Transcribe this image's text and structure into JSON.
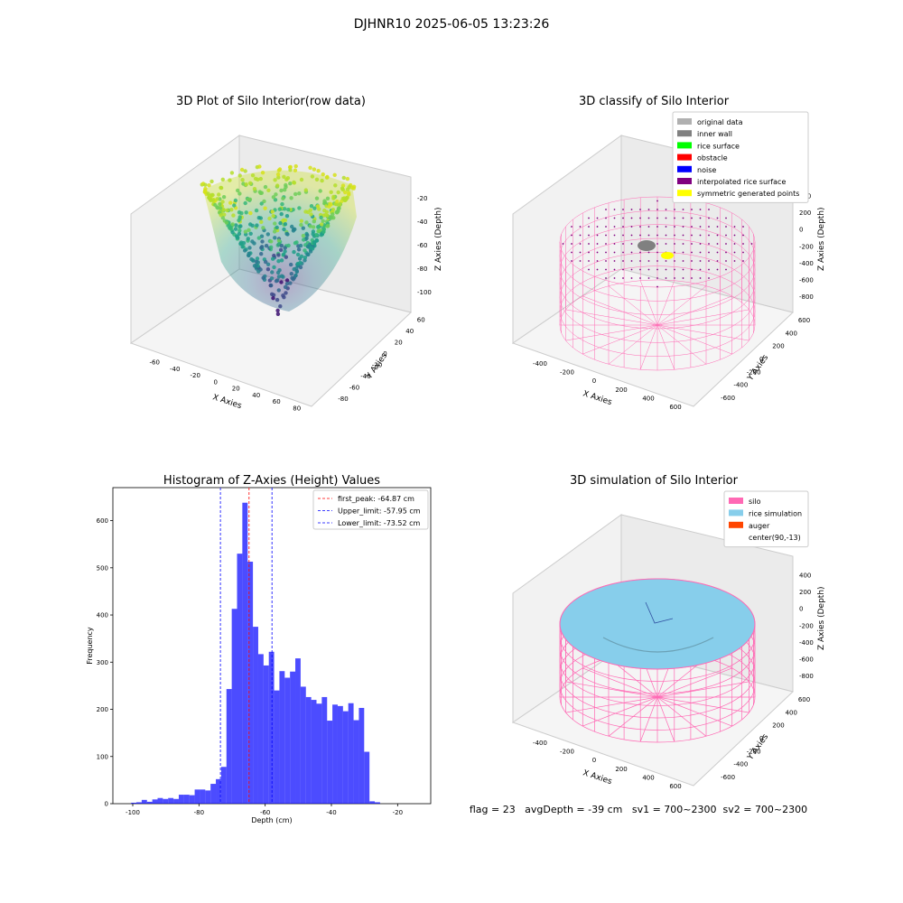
{
  "figure": {
    "suptitle": "DJHNR10 2025-06-05 13:23:26",
    "footer": "flag = 23   avgDepth = -39 cm   sv1 = 700~2300  sv2 = 700~2300"
  },
  "panels": {
    "raw": {
      "title": "3D Plot of Silo Interior(row data)",
      "xlabel": "X Axies",
      "ylabel": "Y Axies",
      "zlabel": "Z Axies (Depth)",
      "xticks": [
        "-60",
        "-40",
        "-20",
        "0",
        "20",
        "40",
        "60",
        "80"
      ],
      "yticks": [
        "-80",
        "-60",
        "-40",
        "-20",
        "0",
        "20",
        "40",
        "60"
      ],
      "zticks": [
        "-20",
        "-40",
        "-60",
        "-80",
        "-100"
      ]
    },
    "classify": {
      "title": "3D classify of Silo Interior",
      "xlabel": "X Axies",
      "ylabel": "Y Axies",
      "zlabel": "Z Axies (Depth)",
      "xticks": [
        "-400",
        "-200",
        "0",
        "200",
        "400",
        "600"
      ],
      "yticks": [
        "-600",
        "-400",
        "-200",
        "0",
        "200",
        "400",
        "600"
      ],
      "zticks": [
        "400",
        "200",
        "0",
        "-200",
        "-400",
        "-600",
        "-800"
      ],
      "legend": [
        {
          "label": "original data",
          "color": "#b0b0b0"
        },
        {
          "label": "inner wall",
          "color": "#808080"
        },
        {
          "label": "rice surface",
          "color": "#00ff00"
        },
        {
          "label": "obstacle",
          "color": "#ff0000"
        },
        {
          "label": "noise",
          "color": "#0000ff"
        },
        {
          "label": "interpolated rice surface",
          "color": "#800080"
        },
        {
          "label": "symmetric generated points",
          "color": "#ffff00"
        }
      ]
    },
    "simulation": {
      "title": "3D simulation of Silo Interior",
      "xlabel": "X Axies",
      "ylabel": "Y Axies",
      "zlabel": "Z Axies (Depth)",
      "xticks": [
        "-400",
        "-200",
        "0",
        "200",
        "400",
        "600"
      ],
      "yticks": [
        "-600",
        "-400",
        "-200",
        "0",
        "200",
        "400",
        "600"
      ],
      "zticks": [
        "400",
        "200",
        "0",
        "-200",
        "-400",
        "-600",
        "-800"
      ],
      "legend": [
        {
          "label": "silo",
          "color": "#ff69b4"
        },
        {
          "label": "rice simulation",
          "color": "#87ceeb"
        },
        {
          "label": "auger",
          "color": "#ff4500"
        },
        {
          "label": "center(90,-13)",
          "color": "#ffffff"
        }
      ]
    }
  },
  "chart_data": {
    "type": "bar",
    "title": "Histogram of Z-Axies (Height) Values",
    "xlabel": "Depth (cm)",
    "ylabel": "Frequency",
    "xlim": [
      -106,
      -10
    ],
    "ylim": [
      0,
      670
    ],
    "xticks": [
      -100,
      -80,
      -60,
      -40,
      -20
    ],
    "yticks": [
      0,
      100,
      200,
      300,
      400,
      500,
      600
    ],
    "bar_color": "#0000ff",
    "bar_start": -100.5,
    "bin_width": 1.6,
    "values": [
      2,
      3,
      8,
      4,
      9,
      12,
      10,
      12,
      10,
      19,
      19,
      18,
      30,
      30,
      28,
      42,
      52,
      78,
      243,
      413,
      530,
      638,
      513,
      375,
      317,
      293,
      322,
      240,
      281,
      267,
      280,
      308,
      248,
      226,
      220,
      212,
      226,
      176,
      210,
      207,
      196,
      213,
      177,
      203,
      110,
      5,
      3
    ],
    "lines": [
      {
        "label": "first_peak: -64.87 cm",
        "x": -64.87,
        "color": "#ff0000"
      },
      {
        "label": "Upper_limit: -57.95 cm",
        "x": -57.95,
        "color": "#0000ff"
      },
      {
        "label": "Lower_limit: -73.52 cm",
        "x": -73.52,
        "color": "#0000ff"
      }
    ],
    "legend_position": "upper-right"
  }
}
